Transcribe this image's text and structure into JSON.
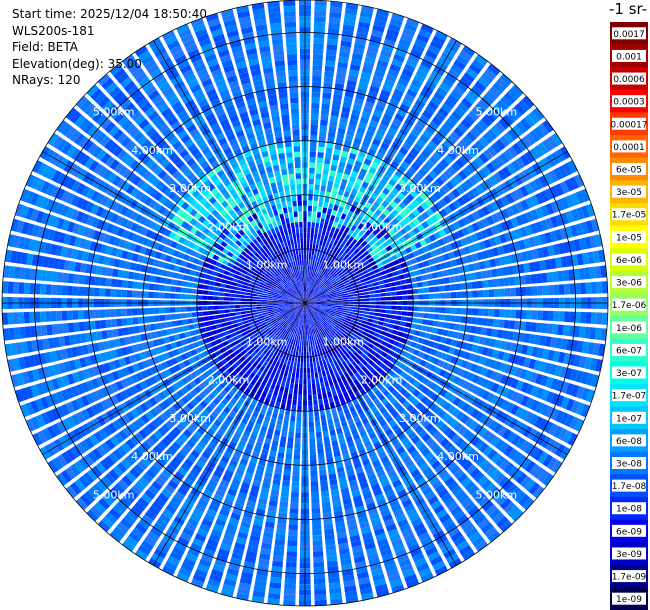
{
  "header": {
    "start_time": "Start time: 2025/12/04 18:50:40",
    "instrument": "WLS200s-181",
    "field": "Field: BETA",
    "elevation": "Elevation(deg): 35.00",
    "nrays": "NRays: 120"
  },
  "colorbar": {
    "title": "-1 sr-",
    "labels": [
      "0.0017",
      "0.001",
      "0.0006",
      "0.0003",
      "0.00017",
      "0.0001",
      "6e-05",
      "3e-05",
      "1.7e-05",
      "1e-05",
      "6e-06",
      "3e-06",
      "1.7e-06",
      "1e-06",
      "6e-07",
      "3e-07",
      "1.7e-07",
      "1e-07",
      "6e-08",
      "3e-08",
      "1.7e-08",
      "1e-08",
      "6e-09",
      "3e-09",
      "1.7e-09",
      "1e-09"
    ],
    "colors": [
      "#800000",
      "#a00000",
      "#c80000",
      "#ff0000",
      "#ff3c00",
      "#ff6400",
      "#ff8c00",
      "#ffb400",
      "#ffdc00",
      "#ffff00",
      "#dcff00",
      "#b4ff32",
      "#96ff64",
      "#64ff96",
      "#32ffc8",
      "#00ffe6",
      "#00e6ff",
      "#00c8ff",
      "#00a0ff",
      "#0078ff",
      "#0050ff",
      "#0028ff",
      "#0000f0",
      "#0000c8",
      "#00008c",
      "#000050"
    ]
  },
  "chart_data": {
    "type": "heatmap",
    "projection": "polar-ppi",
    "field": "BETA",
    "elevation_deg": 35.0,
    "n_rays": 120,
    "range_max_km": 5.6,
    "range_rings_km": [
      1.0,
      2.0,
      3.0,
      4.0,
      5.0
    ],
    "range_ring_labels": [
      "1.00km",
      "2.00km",
      "3.00km",
      "4.00km",
      "5.00km"
    ],
    "spoke_azimuths_deg": [
      0,
      30,
      60,
      90,
      120,
      150,
      180,
      210,
      240,
      270,
      300,
      330
    ],
    "value_bands": [
      {
        "range_km": [
          0.0,
          2.0
        ],
        "color_level": "1e-08",
        "note": "inner region, dark blue"
      },
      {
        "range_km": [
          1.5,
          3.0
        ],
        "azimuth_deg": [
          300,
          60
        ],
        "color_level": "1.7e-07",
        "note": "cyan arc to the north"
      },
      {
        "range_km": [
          2.0,
          5.6
        ],
        "color_level": "3e-08",
        "note": "outer region, medium blue"
      }
    ],
    "color_scale_min": "1e-09",
    "color_scale_max": "0.0017"
  }
}
